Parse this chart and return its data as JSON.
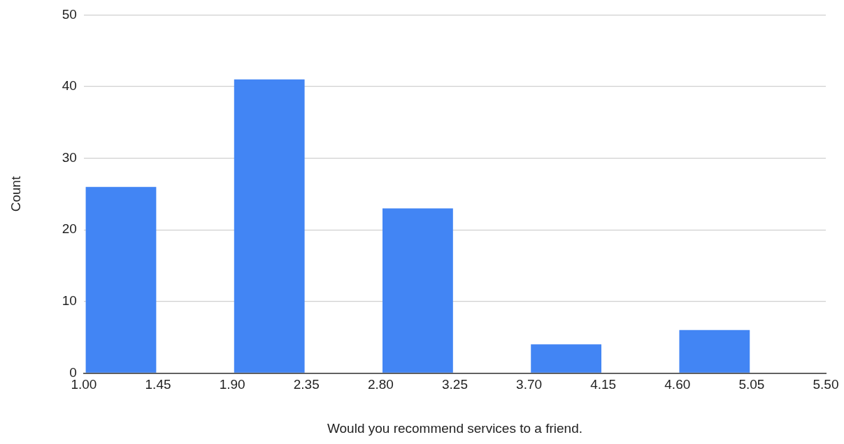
{
  "chart_data": {
    "type": "histogram",
    "xlabel": "Would you recommend services to a friend.",
    "ylabel": "Count",
    "bins": [
      1.0,
      1.45,
      1.9,
      2.35,
      2.8,
      3.25,
      3.7,
      4.15,
      4.6,
      5.05,
      5.5
    ],
    "values": [
      26,
      0,
      41,
      0,
      23,
      0,
      4,
      0,
      6,
      0
    ],
    "color": "#4285f4",
    "xlim": [
      1.0,
      5.5
    ],
    "xticks": [
      {
        "value": 1.0,
        "label": "1.00"
      },
      {
        "value": 1.45,
        "label": "1.45"
      },
      {
        "value": 1.9,
        "label": "1.90"
      },
      {
        "value": 2.35,
        "label": "2.35"
      },
      {
        "value": 2.8,
        "label": "2.80"
      },
      {
        "value": 3.25,
        "label": "3.25"
      },
      {
        "value": 3.7,
        "label": "3.70"
      },
      {
        "value": 4.15,
        "label": "4.15"
      },
      {
        "value": 4.6,
        "label": "4.60"
      },
      {
        "value": 5.05,
        "label": "5.05"
      },
      {
        "value": 5.5,
        "label": "5.50"
      }
    ],
    "ylim": [
      0,
      50
    ],
    "yticks": [
      0,
      10,
      20,
      30,
      40,
      50
    ],
    "grid": "y",
    "legend": false
  }
}
